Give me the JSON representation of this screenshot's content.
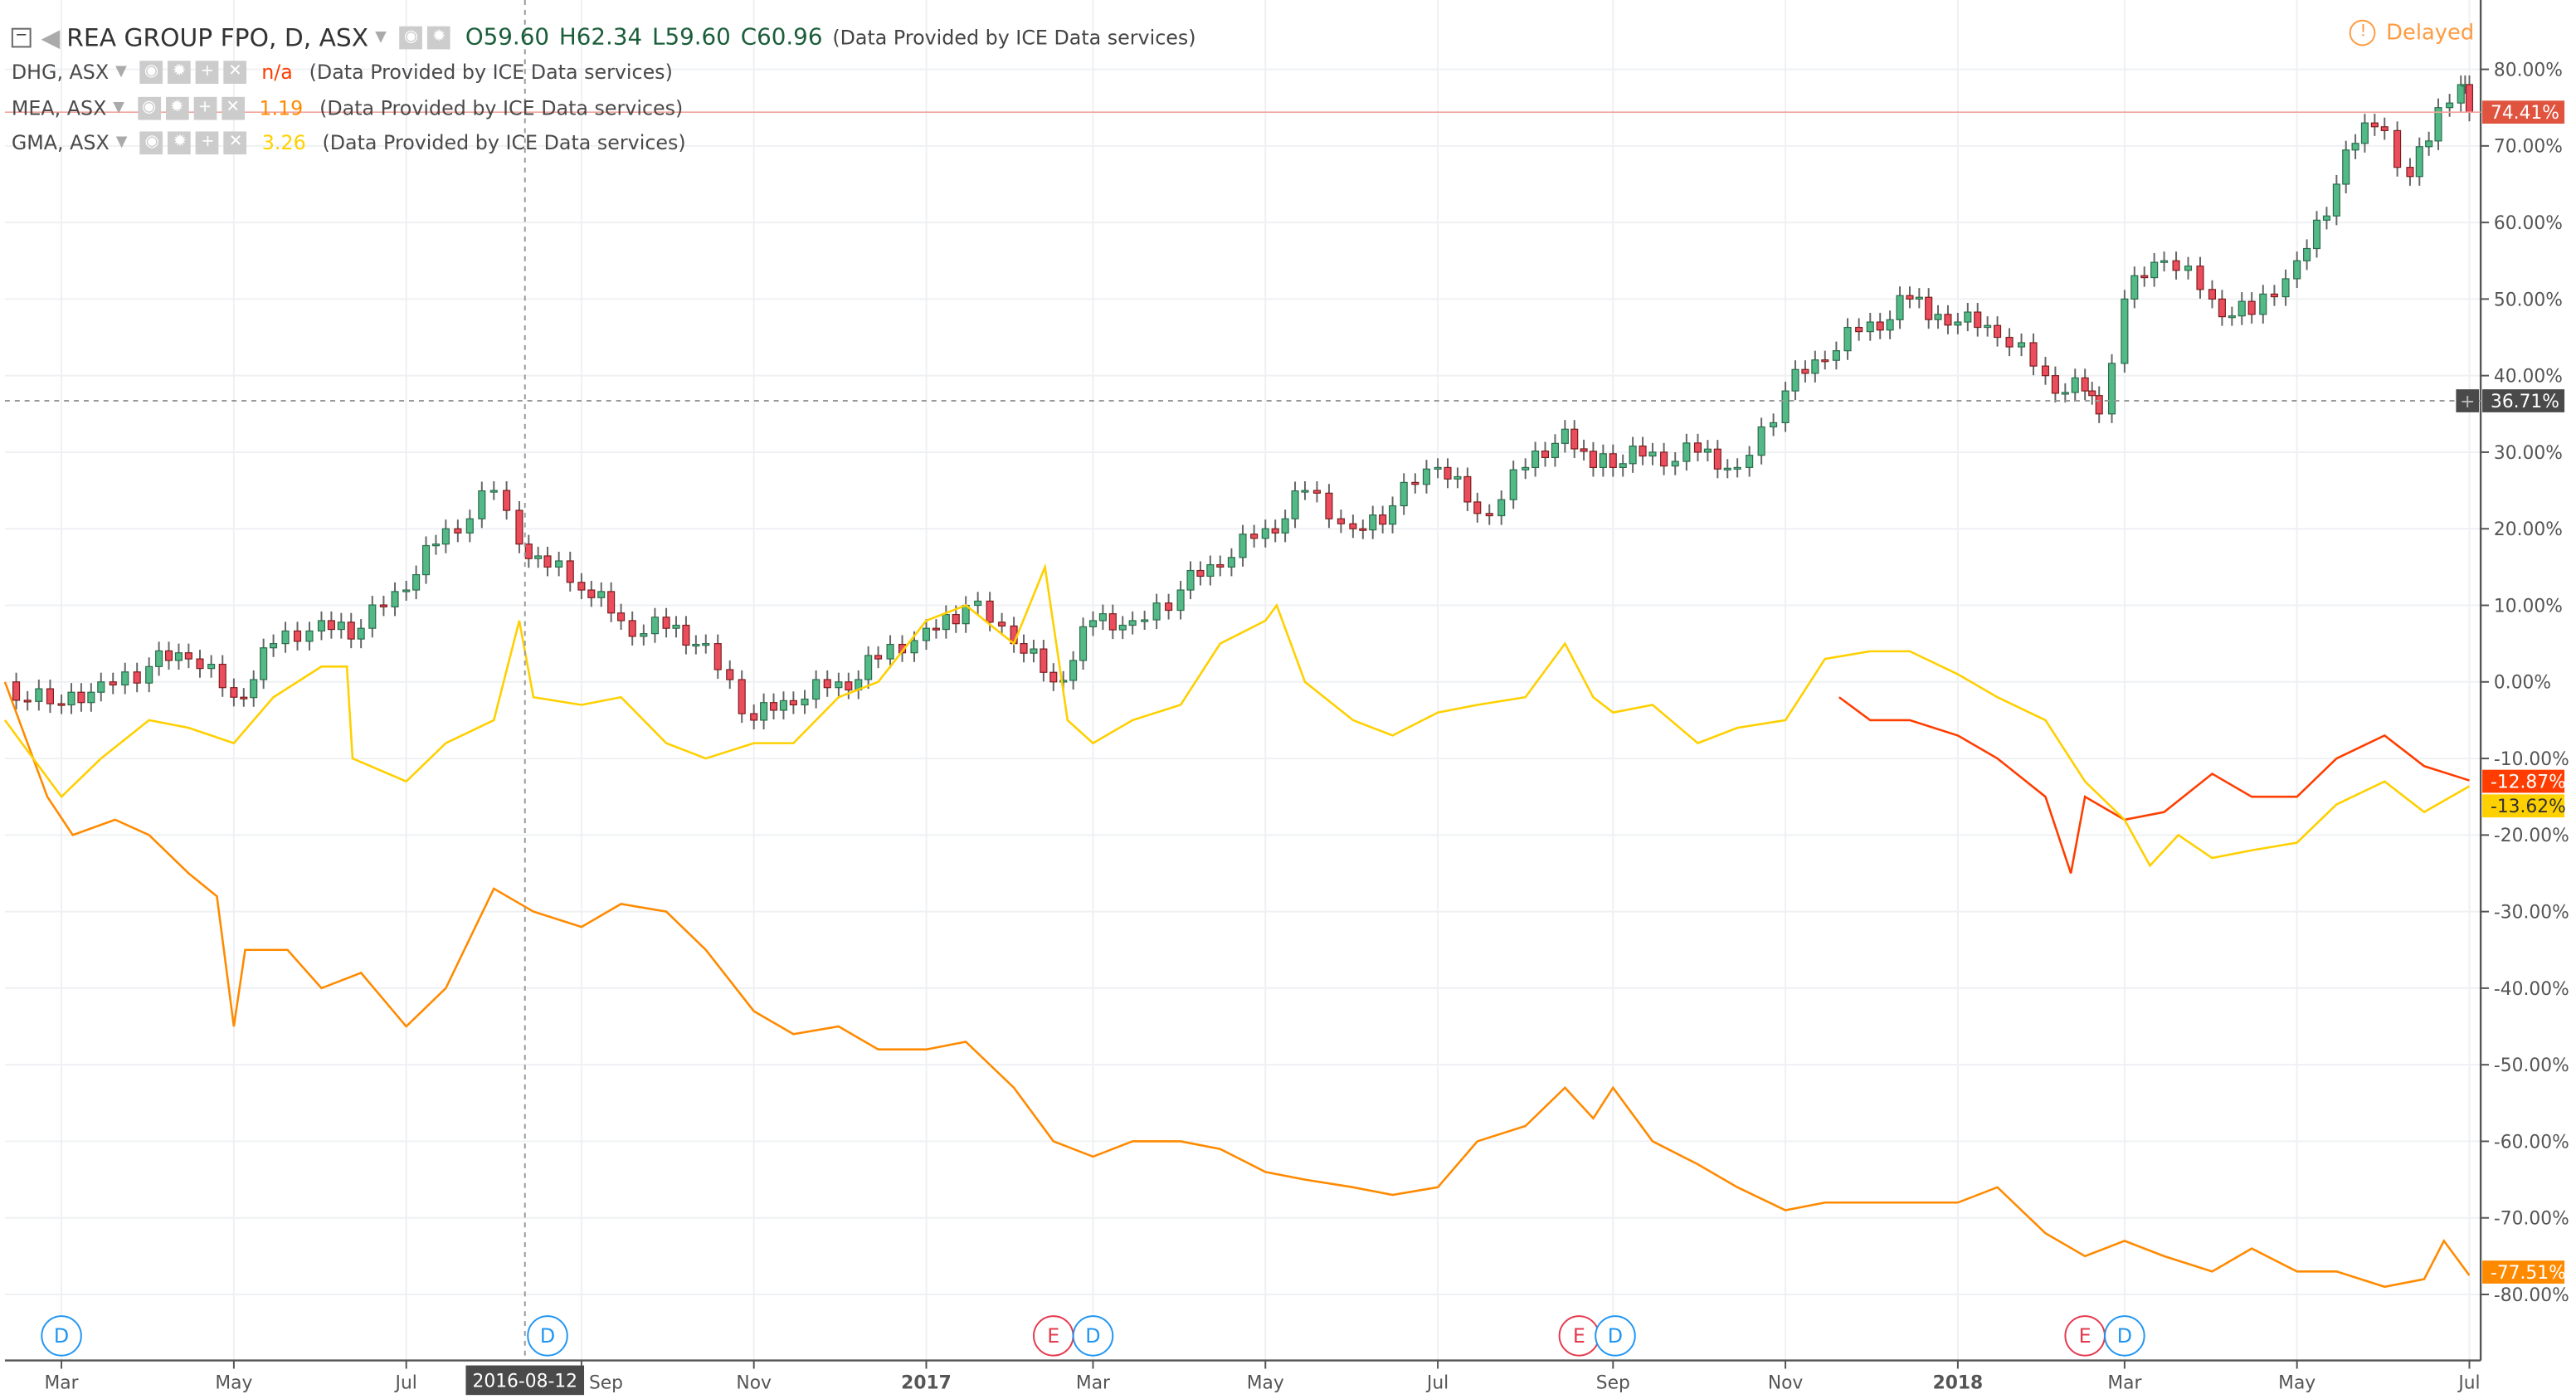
{
  "header": {
    "symbol": "REA GROUP FPO, D, ASX",
    "o": "O59.60",
    "h": "H62.34",
    "l": "L59.60",
    "c": "C60.96",
    "provider": "(Data Provided by ICE Data services)",
    "status": "Delayed"
  },
  "compare": [
    {
      "symbol": "DHG, ASX",
      "value": "n/a",
      "color": "#ff3d00",
      "provider": "(Data Provided by ICE Data services)"
    },
    {
      "symbol": "MEA, ASX",
      "value": "1.19",
      "color": "#ff8a00",
      "provider": "(Data Provided by ICE Data services)"
    },
    {
      "symbol": "GMA, ASX",
      "value": "3.26",
      "color": "#ffd000",
      "provider": "(Data Provided by ICE Data services)"
    }
  ],
  "crosshair": {
    "date": "2016-08-12",
    "value": "36.71%"
  },
  "chart_data": {
    "type": "line",
    "title": "",
    "xlim": [
      "2016-02-10",
      "2018-07-05"
    ],
    "ylim": [
      -84,
      86
    ],
    "grid": true,
    "y_ticks": [
      "80.00%",
      "70.00%",
      "60.00%",
      "50.00%",
      "40.00%",
      "30.00%",
      "20.00%",
      "10.00%",
      "0.00%",
      "-10.00%",
      "-20.00%",
      "-30.00%",
      "-40.00%",
      "-50.00%",
      "-60.00%",
      "-70.00%",
      "-80.00%"
    ],
    "y_tick_values": [
      80,
      70,
      60,
      50,
      40,
      30,
      20,
      10,
      0,
      -10,
      -20,
      -30,
      -40,
      -50,
      -60,
      -70,
      -80
    ],
    "x_ticks": [
      [
        "2016-03-01",
        "Mar"
      ],
      [
        "2016-05-01",
        "May"
      ],
      [
        "2016-07-01",
        "Jul"
      ],
      [
        "2016-09-01",
        "Sep"
      ],
      [
        "2016-11-01",
        "Nov"
      ],
      [
        "2017-01-01",
        "2017"
      ],
      [
        "2017-03-01",
        "Mar"
      ],
      [
        "2017-05-01",
        "May"
      ],
      [
        "2017-07-01",
        "Jul"
      ],
      [
        "2017-09-01",
        "Sep"
      ],
      [
        "2017-11-01",
        "Nov"
      ],
      [
        "2018-01-01",
        "2018"
      ],
      [
        "2018-03-01",
        "Mar"
      ],
      [
        "2018-05-01",
        "May"
      ],
      [
        "2018-07-01",
        "Jul"
      ]
    ],
    "series": [
      {
        "name": "REA GROUP FPO",
        "style": "candles",
        "up_color": "#53b987",
        "down_color": "#eb4d5c",
        "last_label": "74.41%",
        "last_color": "#e0533e",
        "points": [
          [
            "2016-02-10",
            0
          ],
          [
            "2016-03-01",
            -3
          ],
          [
            "2016-03-15",
            0
          ],
          [
            "2016-04-01",
            2
          ],
          [
            "2016-04-15",
            3
          ],
          [
            "2016-05-01",
            -2
          ],
          [
            "2016-05-15",
            5
          ],
          [
            "2016-06-01",
            8
          ],
          [
            "2016-06-15",
            7
          ],
          [
            "2016-07-01",
            12
          ],
          [
            "2016-07-15",
            20
          ],
          [
            "2016-08-01",
            25
          ],
          [
            "2016-08-10",
            18
          ],
          [
            "2016-08-20",
            15
          ],
          [
            "2016-09-01",
            12
          ],
          [
            "2016-09-15",
            8
          ],
          [
            "2016-10-01",
            7
          ],
          [
            "2016-10-15",
            5
          ],
          [
            "2016-11-01",
            -5
          ],
          [
            "2016-11-15",
            -3
          ],
          [
            "2016-12-01",
            0
          ],
          [
            "2016-12-15",
            3
          ],
          [
            "2017-01-01",
            7
          ],
          [
            "2017-01-15",
            10
          ],
          [
            "2017-02-01",
            5
          ],
          [
            "2017-02-15",
            0
          ],
          [
            "2017-03-01",
            8
          ],
          [
            "2017-03-15",
            8
          ],
          [
            "2017-04-01",
            12
          ],
          [
            "2017-04-15",
            15
          ],
          [
            "2017-05-01",
            20
          ],
          [
            "2017-05-15",
            25
          ],
          [
            "2017-06-01",
            20
          ],
          [
            "2017-06-15",
            23
          ],
          [
            "2017-07-01",
            28
          ],
          [
            "2017-07-15",
            22
          ],
          [
            "2017-08-01",
            28
          ],
          [
            "2017-08-15",
            33
          ],
          [
            "2017-08-25",
            28
          ],
          [
            "2017-09-01",
            28
          ],
          [
            "2017-09-15",
            30
          ],
          [
            "2017-10-01",
            30
          ],
          [
            "2017-10-15",
            28
          ],
          [
            "2017-11-01",
            38
          ],
          [
            "2017-11-15",
            42
          ],
          [
            "2017-12-01",
            47
          ],
          [
            "2017-12-15",
            50
          ],
          [
            "2017-12-25",
            48
          ],
          [
            "2018-01-01",
            47
          ],
          [
            "2018-01-15",
            45
          ],
          [
            "2018-02-01",
            40
          ],
          [
            "2018-02-15",
            38
          ],
          [
            "2018-02-20",
            35
          ],
          [
            "2018-03-01",
            50
          ],
          [
            "2018-03-15",
            55
          ],
          [
            "2018-04-01",
            50
          ],
          [
            "2018-04-15",
            48
          ],
          [
            "2018-05-01",
            55
          ],
          [
            "2018-05-15",
            65
          ],
          [
            "2018-05-25",
            73
          ],
          [
            "2018-06-01",
            72
          ],
          [
            "2018-06-10",
            66
          ],
          [
            "2018-06-20",
            75
          ],
          [
            "2018-06-28",
            78
          ],
          [
            "2018-07-01",
            74.41
          ]
        ]
      },
      {
        "name": "DHG, ASX",
        "color": "#ff3d00",
        "last_label": "-12.87%",
        "points": [
          [
            "2017-11-20",
            -2
          ],
          [
            "2017-12-01",
            -5
          ],
          [
            "2017-12-15",
            -5
          ],
          [
            "2018-01-01",
            -7
          ],
          [
            "2018-01-15",
            -10
          ],
          [
            "2018-02-01",
            -15
          ],
          [
            "2018-02-10",
            -25
          ],
          [
            "2018-02-15",
            -15
          ],
          [
            "2018-03-01",
            -18
          ],
          [
            "2018-03-15",
            -17
          ],
          [
            "2018-04-01",
            -12
          ],
          [
            "2018-04-15",
            -15
          ],
          [
            "2018-05-01",
            -15
          ],
          [
            "2018-05-15",
            -10
          ],
          [
            "2018-06-01",
            -7
          ],
          [
            "2018-06-15",
            -11
          ],
          [
            "2018-07-01",
            -12.87
          ]
        ]
      },
      {
        "name": "MEA, ASX",
        "color": "#ff8a00",
        "last_label": "-77.51%",
        "points": [
          [
            "2016-02-10",
            0
          ],
          [
            "2016-02-25",
            -15
          ],
          [
            "2016-03-05",
            -20
          ],
          [
            "2016-03-20",
            -18
          ],
          [
            "2016-04-01",
            -20
          ],
          [
            "2016-04-15",
            -25
          ],
          [
            "2016-04-25",
            -28
          ],
          [
            "2016-05-01",
            -45
          ],
          [
            "2016-05-05",
            -35
          ],
          [
            "2016-05-20",
            -35
          ],
          [
            "2016-06-01",
            -40
          ],
          [
            "2016-06-15",
            -38
          ],
          [
            "2016-07-01",
            -45
          ],
          [
            "2016-07-15",
            -40
          ],
          [
            "2016-08-01",
            -27
          ],
          [
            "2016-08-15",
            -30
          ],
          [
            "2016-09-01",
            -32
          ],
          [
            "2016-09-15",
            -29
          ],
          [
            "2016-10-01",
            -30
          ],
          [
            "2016-10-15",
            -35
          ],
          [
            "2016-11-01",
            -43
          ],
          [
            "2016-11-15",
            -46
          ],
          [
            "2016-12-01",
            -45
          ],
          [
            "2016-12-15",
            -48
          ],
          [
            "2017-01-01",
            -48
          ],
          [
            "2017-01-15",
            -47
          ],
          [
            "2017-02-01",
            -53
          ],
          [
            "2017-02-15",
            -60
          ],
          [
            "2017-03-01",
            -62
          ],
          [
            "2017-03-15",
            -60
          ],
          [
            "2017-04-01",
            -60
          ],
          [
            "2017-04-15",
            -61
          ],
          [
            "2017-05-01",
            -64
          ],
          [
            "2017-05-15",
            -65
          ],
          [
            "2017-06-01",
            -66
          ],
          [
            "2017-06-15",
            -67
          ],
          [
            "2017-07-01",
            -66
          ],
          [
            "2017-07-15",
            -60
          ],
          [
            "2017-08-01",
            -58
          ],
          [
            "2017-08-15",
            -53
          ],
          [
            "2017-08-25",
            -57
          ],
          [
            "2017-09-01",
            -53
          ],
          [
            "2017-09-15",
            -60
          ],
          [
            "2017-10-01",
            -63
          ],
          [
            "2017-10-15",
            -66
          ],
          [
            "2017-11-01",
            -69
          ],
          [
            "2017-11-15",
            -68
          ],
          [
            "2017-12-01",
            -68
          ],
          [
            "2017-12-15",
            -68
          ],
          [
            "2018-01-01",
            -68
          ],
          [
            "2018-01-15",
            -66
          ],
          [
            "2018-02-01",
            -72
          ],
          [
            "2018-02-15",
            -75
          ],
          [
            "2018-03-01",
            -73
          ],
          [
            "2018-03-15",
            -75
          ],
          [
            "2018-04-01",
            -77
          ],
          [
            "2018-04-15",
            -74
          ],
          [
            "2018-05-01",
            -77
          ],
          [
            "2018-05-15",
            -77
          ],
          [
            "2018-06-01",
            -79
          ],
          [
            "2018-06-15",
            -78
          ],
          [
            "2018-06-22",
            -73
          ],
          [
            "2018-07-01",
            -77.51
          ]
        ]
      },
      {
        "name": "GMA, ASX",
        "color": "#ffd000",
        "last_label": "-13.62%",
        "points": [
          [
            "2016-02-10",
            -5
          ],
          [
            "2016-03-01",
            -15
          ],
          [
            "2016-03-15",
            -10
          ],
          [
            "2016-04-01",
            -5
          ],
          [
            "2016-04-15",
            -6
          ],
          [
            "2016-05-01",
            -8
          ],
          [
            "2016-05-15",
            -2
          ],
          [
            "2016-06-01",
            2
          ],
          [
            "2016-06-10",
            2
          ],
          [
            "2016-06-12",
            -10
          ],
          [
            "2016-07-01",
            -13
          ],
          [
            "2016-07-15",
            -8
          ],
          [
            "2016-08-01",
            -5
          ],
          [
            "2016-08-10",
            8
          ],
          [
            "2016-08-15",
            -2
          ],
          [
            "2016-09-01",
            -3
          ],
          [
            "2016-09-15",
            -2
          ],
          [
            "2016-10-01",
            -8
          ],
          [
            "2016-10-15",
            -10
          ],
          [
            "2016-11-01",
            -8
          ],
          [
            "2016-11-15",
            -8
          ],
          [
            "2016-12-01",
            -2
          ],
          [
            "2016-12-15",
            0
          ],
          [
            "2017-01-01",
            8
          ],
          [
            "2017-01-15",
            10
          ],
          [
            "2017-02-01",
            5
          ],
          [
            "2017-02-12",
            15
          ],
          [
            "2017-02-20",
            -5
          ],
          [
            "2017-03-01",
            -8
          ],
          [
            "2017-03-15",
            -5
          ],
          [
            "2017-04-01",
            -3
          ],
          [
            "2017-04-15",
            5
          ],
          [
            "2017-05-01",
            8
          ],
          [
            "2017-05-05",
            10
          ],
          [
            "2017-05-15",
            0
          ],
          [
            "2017-06-01",
            -5
          ],
          [
            "2017-06-15",
            -7
          ],
          [
            "2017-07-01",
            -4
          ],
          [
            "2017-07-15",
            -3
          ],
          [
            "2017-08-01",
            -2
          ],
          [
            "2017-08-15",
            5
          ],
          [
            "2017-08-25",
            -2
          ],
          [
            "2017-09-01",
            -4
          ],
          [
            "2017-09-15",
            -3
          ],
          [
            "2017-10-01",
            -8
          ],
          [
            "2017-10-15",
            -6
          ],
          [
            "2017-11-01",
            -5
          ],
          [
            "2017-11-15",
            3
          ],
          [
            "2017-12-01",
            4
          ],
          [
            "2017-12-15",
            4
          ],
          [
            "2018-01-01",
            1
          ],
          [
            "2018-01-15",
            -2
          ],
          [
            "2018-02-01",
            -5
          ],
          [
            "2018-02-15",
            -13
          ],
          [
            "2018-03-01",
            -18
          ],
          [
            "2018-03-10",
            -24
          ],
          [
            "2018-03-20",
            -20
          ],
          [
            "2018-04-01",
            -23
          ],
          [
            "2018-04-15",
            -22
          ],
          [
            "2018-05-01",
            -21
          ],
          [
            "2018-05-15",
            -16
          ],
          [
            "2018-06-01",
            -13
          ],
          [
            "2018-06-15",
            -17
          ],
          [
            "2018-07-01",
            -13.62
          ]
        ]
      }
    ],
    "events": [
      [
        "2016-03-01",
        "D"
      ],
      [
        "2016-08-20",
        "D"
      ],
      [
        "2017-02-15",
        "E"
      ],
      [
        "2017-03-01",
        "D"
      ],
      [
        "2017-08-20",
        "E"
      ],
      [
        "2017-08-26",
        "D"
      ],
      [
        "2018-02-15",
        "E"
      ],
      [
        "2018-03-01",
        "D"
      ]
    ],
    "event_colors": {
      "D": "#2196f3",
      "E": "#e5394d"
    }
  }
}
